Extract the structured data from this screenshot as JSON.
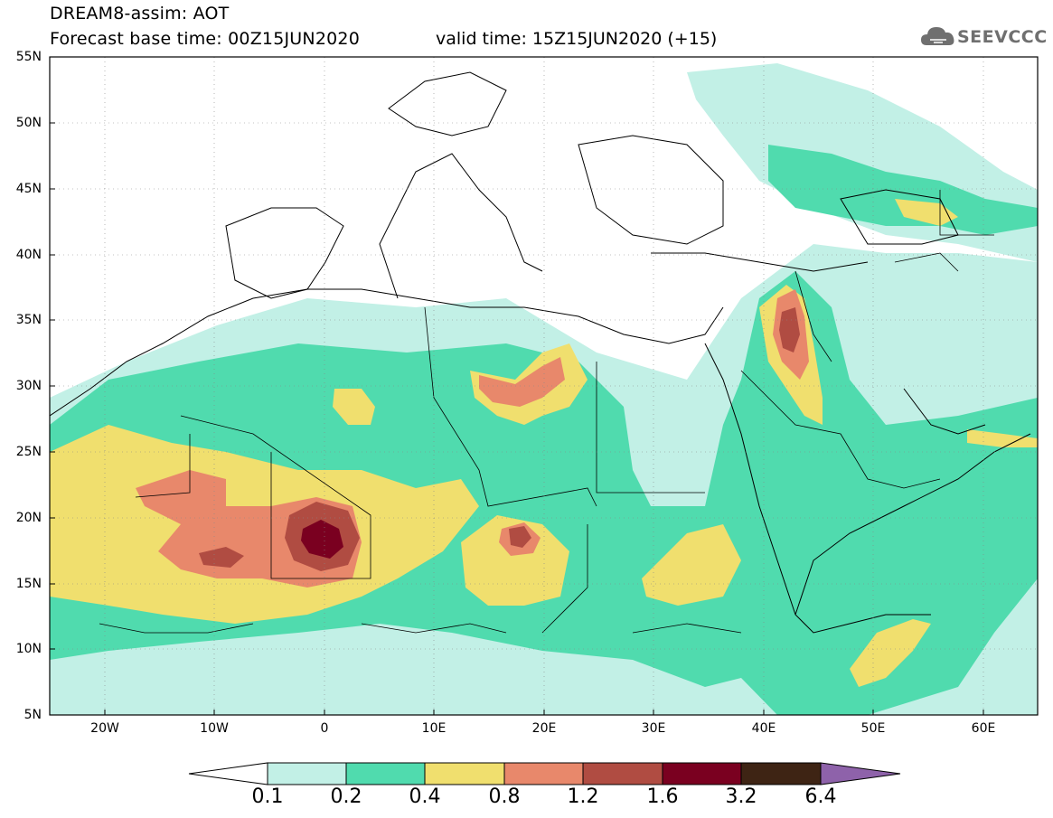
{
  "header": {
    "model": "DREAM8-assim: AOT",
    "base_time": "Forecast base time: 00Z15JUN2020",
    "valid_time": "valid time: 15Z15JUN2020 (+15)",
    "logo_text": "SEEVCCC"
  },
  "axes": {
    "lat_labels": [
      "55N",
      "50N",
      "45N",
      "40N",
      "35N",
      "30N",
      "25N",
      "20N",
      "15N",
      "10N",
      "5N"
    ],
    "lon_labels": [
      "20W",
      "10W",
      "0",
      "10E",
      "20E",
      "30E",
      "40E",
      "50E",
      "60E"
    ]
  },
  "colorbar": {
    "labels": [
      "0.1",
      "0.2",
      "0.4",
      "0.8",
      "1.2",
      "1.6",
      "3.2",
      "6.4"
    ],
    "colors": [
      "#ffffff",
      "#c2f0e6",
      "#50dbae",
      "#f0df6e",
      "#e8886b",
      "#b04c42",
      "#7a0020",
      "#3e2414",
      "#8e62aa"
    ]
  },
  "map_layers": {
    "extent": {
      "lon": [
        -25,
        65
      ],
      "lat": [
        5,
        55
      ]
    },
    "features": [
      "coastlines",
      "country-borders",
      "aot-contours"
    ]
  }
}
